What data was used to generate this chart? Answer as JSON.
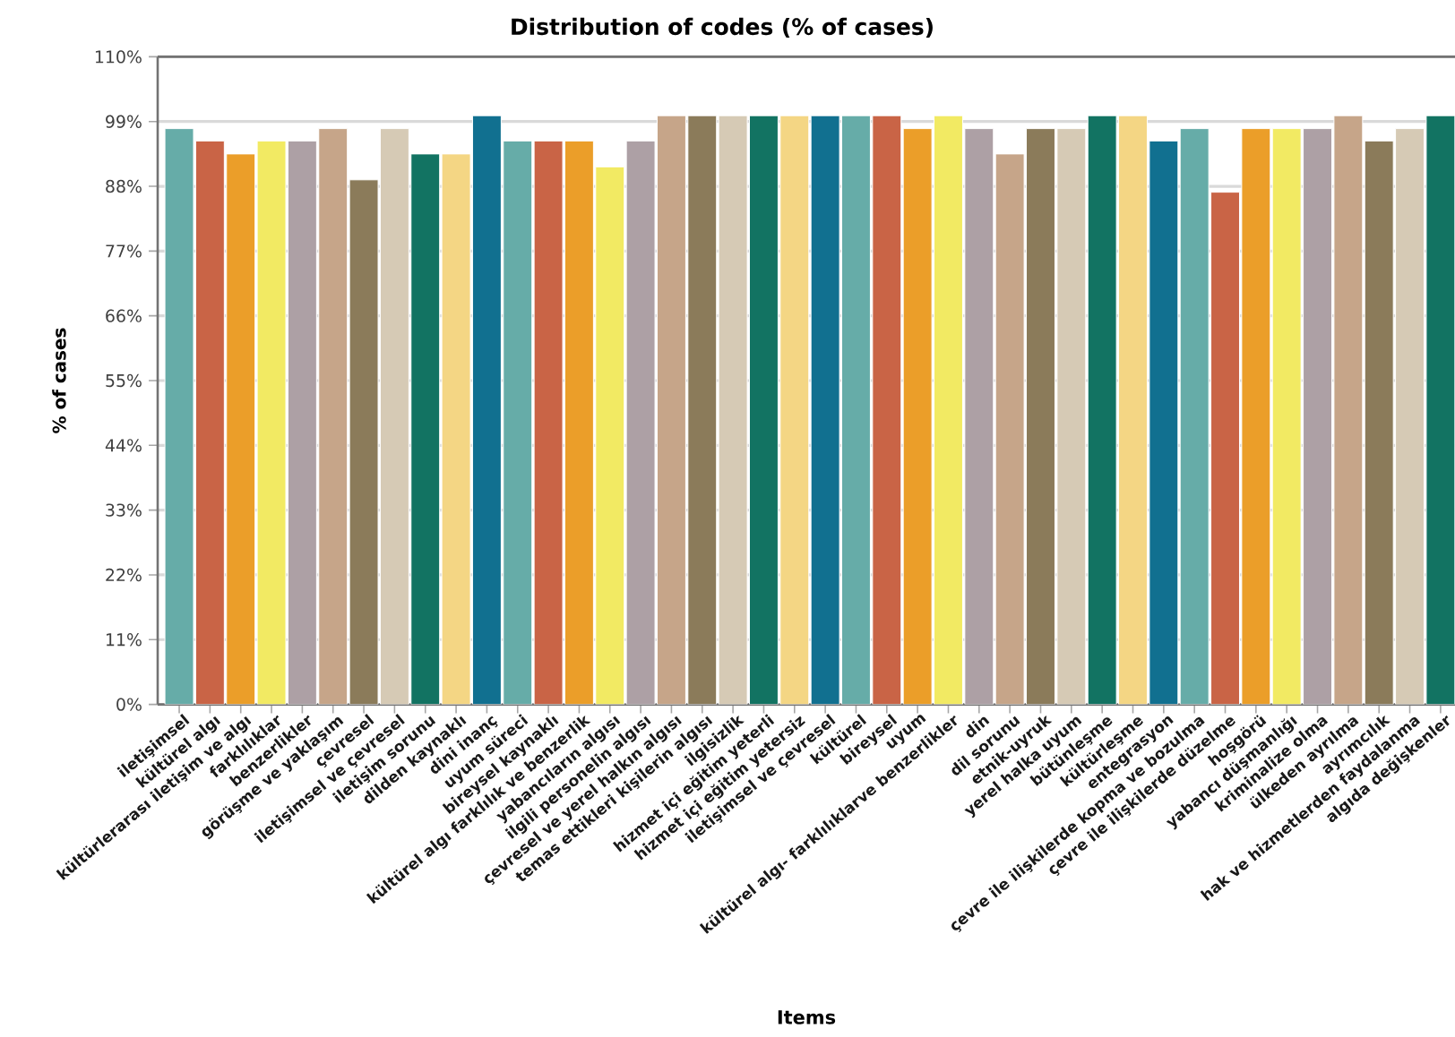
{
  "chart_data": {
    "type": "bar",
    "title": "Distribution of codes (% of cases)",
    "xlabel": "Items",
    "ylabel": "% of cases",
    "categories": [
      "iletişimsel",
      "kültürel algı",
      "kültürlerarası iletişim ve algı",
      "farklılıklar",
      "benzerlikler",
      "görüşme ve yaklaşım",
      "çevresel",
      "iletişimsel ve çevresel",
      "iletişim sorunu",
      "dilden kaynaklı",
      "dini inanç",
      "uyum süreci",
      "bireysel kaynaklı",
      "kültürel algı farklılık ve benzerlik",
      "yabancıların algısı",
      "ilgili personelin algısı",
      "çevresel ve yerel halkın algısı",
      "temas ettikleri kişilerin algısı",
      "ilgisizlik",
      "hizmet içi eğitim yeterli",
      "hizmet içi eğitim yetersiz",
      "iletişimsel ve çevresel",
      "kültürel",
      "bireysel",
      "uyum",
      "kültürel algı- farklılıklarve benzerlikler",
      "din",
      "dil sorunu",
      "etnik-uyruk",
      "yerel halka uyum",
      "bütünleşme",
      "kültürleşme",
      "entegrasyon",
      "çevre ile ilişkilerde kopma ve bozulma",
      "çevre ile ilişkilerde düzelme",
      "hoşgörü",
      "yabancı düşmanlığı",
      "kriminalize olma",
      "ülkeden ayrılma",
      "ayrımcılık",
      "hak ve hizmetlerden faydalanma",
      "algıda değişkenler"
    ],
    "values": [
      97.8,
      95.7,
      93.5,
      95.7,
      95.7,
      97.8,
      89.1,
      97.8,
      93.5,
      93.5,
      100,
      95.7,
      95.7,
      95.7,
      91.3,
      95.7,
      100,
      100,
      100,
      100,
      100,
      100,
      100,
      100,
      97.8,
      100,
      97.8,
      93.5,
      97.8,
      97.8,
      100,
      100,
      95.7,
      97.8,
      87.0,
      97.8,
      97.8,
      97.8,
      100,
      95.7,
      97.8,
      100
    ],
    "colors": [
      "#66aca8",
      "#c96446",
      "#eb9e29",
      "#f2ea63",
      "#ada0a5",
      "#c6a589",
      "#8b7b5a",
      "#d6cab5",
      "#127362",
      "#f4d684",
      "#117090",
      "#66aca8",
      "#c96446",
      "#eb9e29",
      "#f2ea63",
      "#ada0a5",
      "#c6a589",
      "#8b7b5a",
      "#d6cab5",
      "#127362",
      "#f4d684",
      "#117090",
      "#66aca8",
      "#c96446",
      "#eb9e29",
      "#f2ea63",
      "#ada0a5",
      "#c6a589",
      "#8b7b5a",
      "#d6cab5",
      "#127362",
      "#f4d684",
      "#117090",
      "#66aca8",
      "#c96446",
      "#eb9e29",
      "#f2ea63",
      "#ada0a5",
      "#c6a589",
      "#8b7b5a",
      "#d6cab5",
      "#127362"
    ],
    "ylim": [
      0,
      110
    ],
    "yticks": [
      {
        "value": 0,
        "label": "0%"
      },
      {
        "value": 11,
        "label": "11%"
      },
      {
        "value": 22,
        "label": "22%"
      },
      {
        "value": 33,
        "label": "33%"
      },
      {
        "value": 44,
        "label": "44%"
      },
      {
        "value": 55,
        "label": "55%"
      },
      {
        "value": 66,
        "label": "66%"
      },
      {
        "value": 77,
        "label": "77%"
      },
      {
        "value": 88,
        "label": "88%"
      },
      {
        "value": 99,
        "label": "99%"
      },
      {
        "value": 110,
        "label": "110%"
      }
    ],
    "grid": "y"
  }
}
